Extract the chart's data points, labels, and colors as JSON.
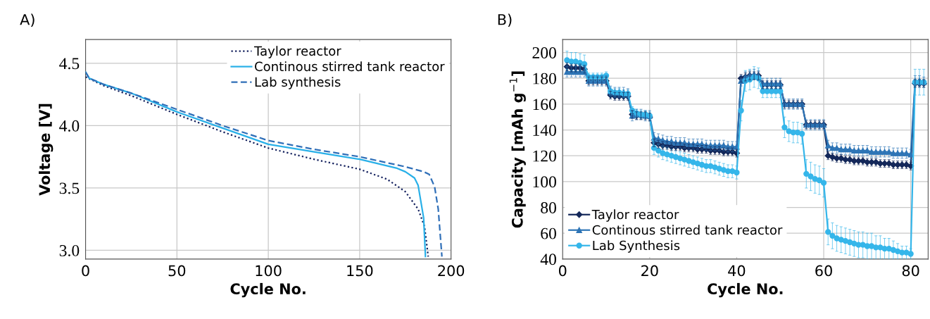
{
  "chart_data": [
    {
      "type": "line",
      "title": "A)",
      "xlabel": "Cycle No.",
      "ylabel": "Voltage [V]",
      "xlim": [
        0,
        200
      ],
      "ylim": [
        2.93,
        4.69
      ],
      "xticks": [
        0,
        50,
        100,
        150,
        200
      ],
      "yticks": [
        {
          "value": 3.0,
          "label": "3.0"
        },
        {
          "value": 3.5,
          "label": "3.5"
        },
        {
          "value": 4.0,
          "label": "4.0"
        },
        {
          "value": 4.5,
          "label": "4.5"
        }
      ],
      "grid": true,
      "legend": "top right",
      "marker": "none",
      "series": [
        {
          "name": "Taylor reactor",
          "color": "#14215e",
          "line_style": "dotted",
          "x": [
            0,
            10,
            25,
            50,
            75,
            100,
            125,
            150,
            165,
            172,
            175,
            182,
            185.5,
            187.5
          ],
          "values": [
            4.39,
            4.32,
            4.24,
            4.09,
            3.95,
            3.82,
            3.73,
            3.65,
            3.57,
            3.5,
            3.47,
            3.33,
            3.19,
            2.95
          ]
        },
        {
          "name": "Continous stirred tank reactor",
          "color": "#29b0e8",
          "line_style": "solid",
          "x": [
            0,
            2,
            10,
            25,
            50,
            75,
            100,
            125,
            150,
            170,
            175,
            180,
            182,
            185,
            186
          ],
          "values": [
            4.43,
            4.38,
            4.33,
            4.26,
            4.11,
            3.98,
            3.85,
            3.79,
            3.73,
            3.66,
            3.63,
            3.58,
            3.52,
            3.26,
            2.95
          ]
        },
        {
          "name": "Lab synthesis",
          "color": "#2f6fb8",
          "line_style": "dashed",
          "x": [
            0,
            2,
            10,
            25,
            50,
            75,
            100,
            125,
            150,
            175,
            185,
            188,
            191,
            193,
            195
          ],
          "values": [
            4.43,
            4.38,
            4.33,
            4.26,
            4.13,
            4.0,
            3.88,
            3.81,
            3.75,
            3.67,
            3.63,
            3.61,
            3.51,
            3.33,
            2.95
          ]
        }
      ]
    },
    {
      "type": "line",
      "title": "B)",
      "xlabel": "Cycle No.",
      "ylabel": "Capacity [mAh g$^{−1}$]",
      "xlim": [
        0,
        84
      ],
      "ylim": [
        40,
        210
      ],
      "xticks": [
        0,
        20,
        40,
        60,
        80
      ],
      "yticks": [
        40,
        60,
        80,
        100,
        120,
        140,
        160,
        180,
        200
      ],
      "grid": true,
      "legend": "bottom left",
      "x": [
        1,
        2,
        3,
        4,
        5,
        6,
        7,
        8,
        9,
        10,
        11,
        12,
        13,
        14,
        15,
        16,
        17,
        18,
        19,
        20,
        21,
        22,
        23,
        24,
        25,
        26,
        27,
        28,
        29,
        30,
        31,
        32,
        33,
        34,
        35,
        36,
        37,
        38,
        39,
        40,
        41,
        42,
        43,
        44,
        45,
        46,
        47,
        48,
        49,
        50,
        51,
        52,
        53,
        54,
        55,
        56,
        57,
        58,
        59,
        60,
        61,
        62,
        63,
        64,
        65,
        66,
        67,
        68,
        69,
        70,
        71,
        72,
        73,
        74,
        75,
        76,
        77,
        78,
        79,
        80,
        81,
        82,
        83
      ],
      "series": [
        {
          "name": "Taylor reactor",
          "color": "#14285a",
          "marker": "diamond",
          "values": [
            189,
            188,
            188,
            188,
            187,
            178,
            178,
            178,
            178,
            178,
            167,
            166,
            166,
            166,
            166,
            152,
            151,
            151,
            151,
            150,
            130,
            129,
            128,
            128,
            127,
            127,
            127,
            126,
            126,
            126,
            125,
            125,
            125,
            124,
            124,
            124,
            123,
            123,
            123,
            122,
            180,
            181,
            182,
            182,
            182,
            175,
            175,
            175,
            175,
            175,
            160,
            160,
            160,
            160,
            160,
            144,
            144,
            144,
            144,
            144,
            120,
            119,
            118,
            118,
            117,
            117,
            116,
            116,
            116,
            115,
            115,
            115,
            114,
            114,
            114,
            113,
            113,
            113,
            113,
            112,
            176,
            176,
            176
          ],
          "errors": [
            3,
            3,
            3,
            3,
            3,
            3,
            3,
            3,
            3,
            3,
            3,
            3,
            3,
            3,
            3,
            3,
            3,
            3,
            3,
            3,
            3,
            3,
            3,
            3,
            3,
            3,
            3,
            3,
            3,
            3,
            3,
            3,
            3,
            3,
            3,
            3,
            3,
            3,
            3,
            3,
            3,
            3,
            3,
            3,
            3,
            3,
            3,
            3,
            3,
            3,
            3,
            3,
            3,
            3,
            3,
            3,
            3,
            3,
            3,
            3,
            3,
            3,
            3,
            3,
            3,
            3,
            3,
            3,
            3,
            3,
            3,
            3,
            3,
            3,
            3,
            3,
            3,
            3,
            3,
            3,
            3,
            3,
            3
          ]
        },
        {
          "name": "Continous stirred tank reactor",
          "color": "#2e75b6",
          "marker": "triangle",
          "values": [
            185,
            185,
            185,
            185,
            185,
            178,
            178,
            178,
            178,
            178,
            170,
            169,
            169,
            169,
            168,
            151,
            152,
            152,
            151,
            151,
            134,
            133,
            132,
            131,
            131,
            130,
            130,
            130,
            129,
            129,
            129,
            129,
            128,
            128,
            128,
            128,
            128,
            127,
            127,
            127,
            178,
            181,
            182,
            183,
            182,
            176,
            176,
            176,
            176,
            176,
            160,
            160,
            160,
            160,
            160,
            144,
            144,
            144,
            144,
            144,
            128,
            126,
            126,
            125,
            125,
            125,
            124,
            124,
            124,
            124,
            123,
            123,
            123,
            123,
            123,
            122,
            122,
            122,
            122,
            121,
            178,
            178,
            177
          ],
          "errors": [
            4,
            4,
            4,
            4,
            4,
            4,
            4,
            4,
            4,
            4,
            4,
            4,
            4,
            4,
            4,
            4,
            4,
            4,
            4,
            4,
            4,
            4,
            4,
            4,
            4,
            4,
            4,
            4,
            4,
            4,
            4,
            4,
            4,
            4,
            4,
            4,
            4,
            4,
            4,
            4,
            4,
            4,
            4,
            4,
            4,
            4,
            4,
            4,
            4,
            4,
            4,
            4,
            4,
            4,
            4,
            4,
            4,
            4,
            4,
            4,
            4,
            4,
            4,
            4,
            4,
            4,
            4,
            4,
            4,
            4,
            4,
            4,
            4,
            4,
            4,
            4,
            4,
            4,
            4,
            4,
            4,
            4,
            4
          ]
        },
        {
          "name": "Lab Synthesis",
          "color": "#35b6ea",
          "marker": "circle",
          "values": [
            194,
            193,
            193,
            192,
            191,
            181,
            181,
            181,
            181,
            182,
            170,
            169,
            169,
            168,
            168,
            155,
            153,
            152,
            152,
            151,
            126,
            124,
            122,
            121,
            120,
            119,
            118,
            117,
            116,
            115,
            114,
            113,
            112,
            112,
            111,
            110,
            109,
            108,
            108,
            107,
            155,
            178,
            179,
            181,
            180,
            170,
            170,
            170,
            170,
            170,
            142,
            139,
            138,
            138,
            137,
            106,
            104,
            102,
            101,
            99,
            61,
            58,
            56,
            55,
            54,
            53,
            52,
            51,
            51,
            50,
            50,
            49,
            49,
            48,
            48,
            47,
            46,
            45,
            45,
            44,
            177,
            177,
            177
          ],
          "errors": [
            7,
            7,
            7,
            7,
            7,
            3,
            3,
            3,
            3,
            3,
            3,
            3,
            3,
            3,
            3,
            3,
            3,
            3,
            3,
            3,
            5,
            5,
            5,
            5,
            5,
            5,
            5,
            5,
            5,
            5,
            5,
            5,
            5,
            5,
            5,
            5,
            5,
            5,
            5,
            5,
            8,
            8,
            8,
            8,
            8,
            5,
            5,
            5,
            5,
            5,
            8,
            8,
            8,
            8,
            8,
            11,
            11,
            11,
            11,
            11,
            10,
            10,
            10,
            10,
            10,
            10,
            10,
            10,
            10,
            10,
            10,
            9,
            9,
            8,
            8,
            7,
            6,
            5,
            5,
            4,
            10,
            10,
            10
          ]
        }
      ]
    }
  ]
}
